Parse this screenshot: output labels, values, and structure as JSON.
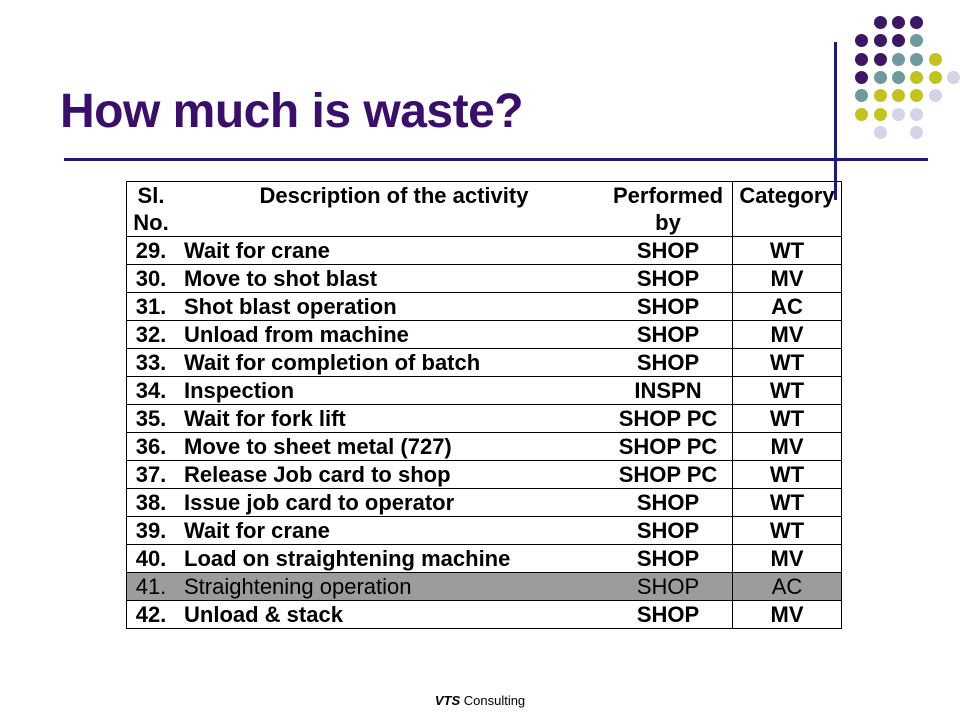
{
  "slide": {
    "title": "How much is waste?"
  },
  "table": {
    "headers": {
      "no_line1": "Sl.",
      "no_line2": "No.",
      "description": "Description of the activity",
      "performed_line1": "Performed",
      "performed_line2": "by",
      "category": "Category"
    },
    "rows": [
      {
        "no": "29.",
        "description": "Wait for crane",
        "performed_by": "SHOP",
        "category": "WT"
      },
      {
        "no": "30.",
        "description": "Move to shot blast",
        "performed_by": "SHOP",
        "category": "MV"
      },
      {
        "no": "31.",
        "description": "Shot blast operation",
        "performed_by": "SHOP",
        "category": "AC"
      },
      {
        "no": "32.",
        "description": "Unload from machine",
        "performed_by": "SHOP",
        "category": "MV"
      },
      {
        "no": "33.",
        "description": "Wait for completion of batch",
        "performed_by": "SHOP",
        "category": "WT"
      },
      {
        "no": "34.",
        "description": "Inspection",
        "performed_by": "INSPN",
        "category": "WT"
      },
      {
        "no": "35.",
        "description": "Wait for fork lift",
        "performed_by": "SHOP  PC",
        "category": "WT"
      },
      {
        "no": "36.",
        "description": "Move to sheet metal (727)",
        "performed_by": "SHOP  PC",
        "category": "MV"
      },
      {
        "no": "37.",
        "description": "Release Job card to shop",
        "performed_by": "SHOP  PC",
        "category": "WT"
      },
      {
        "no": "38.",
        "description": "Issue job card to operator",
        "performed_by": "SHOP",
        "category": "WT"
      },
      {
        "no": "39.",
        "description": "Wait for crane",
        "performed_by": "SHOP",
        "category": "WT"
      },
      {
        "no": "40.",
        "description": "Load on straightening machine",
        "performed_by": "SHOP",
        "category": "MV"
      },
      {
        "no": "41.",
        "description": "Straightening operation",
        "performed_by": "SHOP",
        "category": "AC",
        "highlighted": true
      },
      {
        "no": "42.",
        "description": "Unload & stack",
        "performed_by": "SHOP",
        "category": "MV"
      }
    ]
  },
  "footer": {
    "brand": "VTS",
    "suffix": " Consulting"
  },
  "colors": {
    "title": "#3a0f6b",
    "rule": "#1a1a80",
    "dot_purple": "#3d1766",
    "dot_teal": "#6e9a9c",
    "dot_olive": "#c3c320",
    "dot_lilac": "#d4d4e8",
    "highlight_row": "#9c9c9c"
  }
}
